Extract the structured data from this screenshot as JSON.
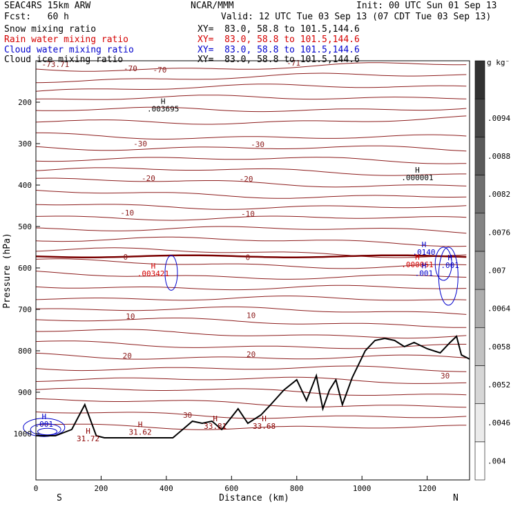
{
  "header": {
    "model": "SEAC4RS 15km ARW",
    "forecast": "Fcst:   60 h",
    "org": "NCAR/MMM",
    "init": "Init: 00 UTC Sun 01 Sep 13",
    "valid": "Valid: 12 UTC Tue 03 Sep 13 (07 CDT Tue 03 Sep 13)"
  },
  "legend": [
    {
      "label": "Snow mixing ratio",
      "xy": "XY=  83.0, 58.8 to 101.5,144.6",
      "color": "#000000"
    },
    {
      "label": "Rain water mixing ratio",
      "xy": "XY=  83.0, 58.8 to 101.5,144.6",
      "color": "#d40000"
    },
    {
      "label": "Cloud water mixing ratio",
      "xy": "XY=  83.0, 58.8 to 101.5,144.6",
      "color": "#0000cc"
    },
    {
      "label": "Cloud ice mixing ratio",
      "xy": "XY=  83.0, 58.8 to 101.5,144.6",
      "color": "#000000"
    }
  ],
  "colorbar": {
    "unit": "g kg⁻¹",
    "ticks": [
      ".004",
      ".0046",
      ".0052",
      ".0058",
      ".0064",
      ".007",
      ".0076",
      ".0082",
      ".0088",
      ".0094"
    ]
  },
  "chart_data": {
    "type": "cross-section contour",
    "xlabel": "Distance (km)",
    "ylabel": "Pressure (hPa)",
    "xlim": [
      0,
      1330
    ],
    "ylim": [
      1050,
      100
    ],
    "x_ticks": [
      0,
      200,
      400,
      600,
      800,
      1000,
      1200
    ],
    "y_ticks": [
      200,
      300,
      400,
      500,
      600,
      700,
      800,
      900,
      1000
    ],
    "x_end_labels": {
      "left": "S",
      "right": "N"
    },
    "isotherm_labels": [
      {
        "text": "-73.71",
        "x": 60,
        "p": 108
      },
      {
        "text": "-70",
        "x": 290,
        "p": 118
      },
      {
        "text": "-70",
        "x": 380,
        "p": 122
      },
      {
        "text": "-71",
        "x": 790,
        "p": 105
      },
      {
        "text": "-30",
        "x": 320,
        "p": 300
      },
      {
        "text": "-30",
        "x": 680,
        "p": 302
      },
      {
        "text": "-20",
        "x": 345,
        "p": 383
      },
      {
        "text": "-20",
        "x": 645,
        "p": 385
      },
      {
        "text": "-10",
        "x": 280,
        "p": 467
      },
      {
        "text": "-10",
        "x": 650,
        "p": 469
      },
      {
        "text": "0",
        "x": 275,
        "p": 573
      },
      {
        "text": "0",
        "x": 650,
        "p": 574
      },
      {
        "text": "10",
        "x": 290,
        "p": 717
      },
      {
        "text": "10",
        "x": 660,
        "p": 714
      },
      {
        "text": "20",
        "x": 280,
        "p": 812
      },
      {
        "text": "20",
        "x": 660,
        "p": 808
      },
      {
        "text": "30",
        "x": 465,
        "p": 955
      },
      {
        "text": "30",
        "x": 1255,
        "p": 860
      }
    ],
    "max_labels": [
      {
        "text": ".003695",
        "x": 390,
        "p": 214,
        "color": "#000000"
      },
      {
        "text": ".000001",
        "x": 1170,
        "p": 380,
        "color": "#000000"
      },
      {
        "text": ".0140",
        "x": 1190,
        "p": 560,
        "color": "#0000cc"
      },
      {
        "text": ".003421",
        "x": 360,
        "p": 612,
        "color": "#d40000"
      },
      {
        "text": ".000061",
        "x": 1170,
        "p": 590,
        "color": "#d40000"
      },
      {
        "text": ".001",
        "x": 1190,
        "p": 611,
        "color": "#0000cc"
      },
      {
        "text": ".001",
        "x": 1270,
        "p": 592,
        "color": "#0000cc"
      },
      {
        "text": ".001",
        "x": 25,
        "p": 975,
        "color": "#0000cc"
      },
      {
        "text": "31.72",
        "x": 160,
        "p": 1010,
        "color": "#8b0000"
      },
      {
        "text": "31.62",
        "x": 320,
        "p": 994,
        "color": "#8b0000"
      },
      {
        "text": "33.81",
        "x": 550,
        "p": 980,
        "color": "#8b0000"
      },
      {
        "text": "33.68",
        "x": 700,
        "p": 980,
        "color": "#8b0000"
      }
    ],
    "isotherms_p": [
      120,
      145,
      170,
      195,
      222,
      250,
      278,
      306,
      334,
      362,
      390,
      418,
      446,
      474,
      502,
      530,
      558,
      586,
      614,
      642,
      670,
      698,
      726,
      754,
      782,
      810,
      838,
      866,
      894,
      922,
      950,
      978
    ],
    "zero_isotherm_p": 572,
    "terrain": {
      "x": [
        0,
        60,
        110,
        150,
        185,
        210,
        240,
        330,
        420,
        450,
        480,
        510,
        540,
        570,
        600,
        620,
        650,
        690,
        720,
        760,
        800,
        830,
        860,
        880,
        900,
        920,
        940,
        970,
        1010,
        1040,
        1070,
        1100,
        1130,
        1160,
        1200,
        1240,
        1270,
        1290,
        1305,
        1330
      ],
      "p": [
        1005,
        1005,
        990,
        930,
        1005,
        1010,
        1010,
        1010,
        1010,
        990,
        970,
        975,
        970,
        990,
        960,
        940,
        975,
        955,
        930,
        895,
        870,
        920,
        860,
        940,
        895,
        870,
        930,
        865,
        800,
        775,
        770,
        775,
        790,
        780,
        795,
        805,
        780,
        765,
        810,
        820
      ]
    }
  }
}
